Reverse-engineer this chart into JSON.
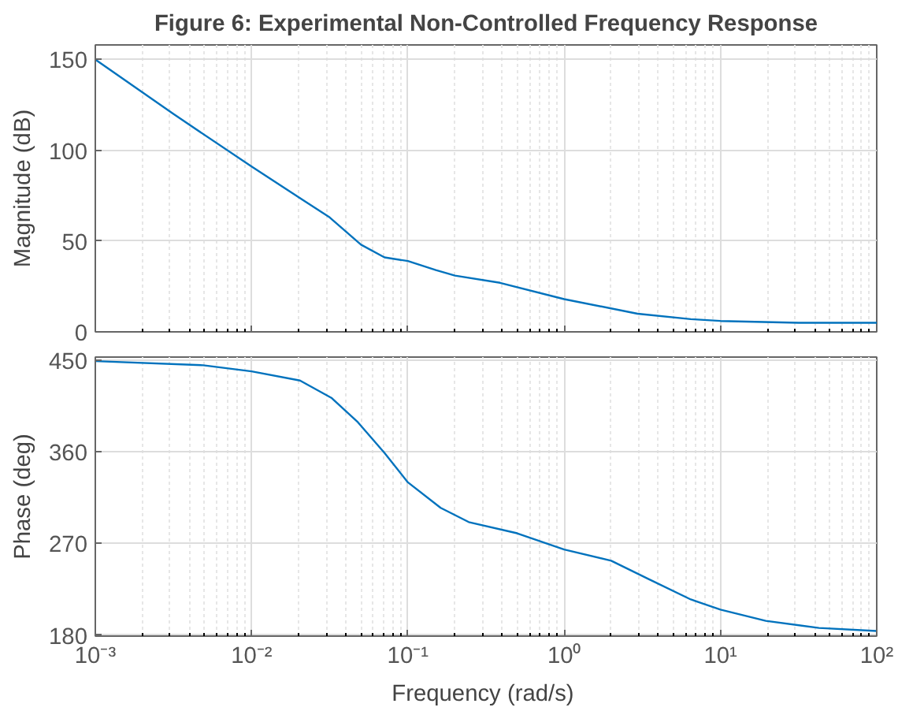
{
  "chart_data": [
    {
      "type": "line",
      "title": "Figure 6: Experimental Non-Controlled Frequency Response",
      "ylabel": "Magnitude (dB)",
      "log": "x",
      "grid": true,
      "tick_labels": "y",
      "color": "#0072bd",
      "x": [
        0.001,
        0.00316,
        0.01,
        0.0316,
        0.0501,
        0.0708,
        0.1,
        0.151,
        0.2,
        0.389,
        1,
        2.95,
        6.46,
        10,
        31.6,
        100
      ],
      "values": [
        150,
        120,
        91,
        63,
        48,
        41,
        39,
        34,
        31,
        27,
        18,
        10,
        7,
        6,
        5,
        5
      ],
      "xlim": [
        0.001,
        100
      ],
      "ylim": [
        0,
        158
      ],
      "xticks": [
        {
          "value": 0.001,
          "label": null
        },
        {
          "value": 0.01,
          "label": null
        },
        {
          "value": 0.1,
          "label": null
        },
        {
          "value": 1,
          "label": null
        },
        {
          "value": 10,
          "label": null
        },
        {
          "value": 100,
          "label": null
        }
      ],
      "yticks": [
        0,
        50,
        100,
        150
      ]
    },
    {
      "type": "line",
      "xlabel": "Frequency  (rad/s)",
      "ylabel": "Phase (deg)",
      "log": "x",
      "grid": true,
      "color": "#0072bd",
      "x": [
        0.001,
        0.0049,
        0.01,
        0.0204,
        0.0324,
        0.0479,
        0.0708,
        0.1,
        0.162,
        0.245,
        0.5,
        1,
        2,
        3.47,
        6.46,
        10,
        19.5,
        42.7,
        100
      ],
      "values": [
        449,
        445,
        439,
        430,
        413,
        389,
        359,
        330,
        305,
        291,
        280,
        264,
        253,
        235,
        215,
        205,
        194,
        187,
        184
      ],
      "xlim": [
        0.001,
        100
      ],
      "ylim": [
        179,
        453
      ],
      "xticks": [
        {
          "value": 0.001,
          "label": "10⁻³"
        },
        {
          "value": 0.01,
          "label": "10⁻²"
        },
        {
          "value": 0.1,
          "label": "10⁻¹"
        },
        {
          "value": 1,
          "label": "10⁰"
        },
        {
          "value": 10,
          "label": "10¹"
        },
        {
          "value": 100,
          "label": "10²"
        }
      ],
      "yticks": [
        180,
        270,
        360,
        450
      ]
    }
  ]
}
